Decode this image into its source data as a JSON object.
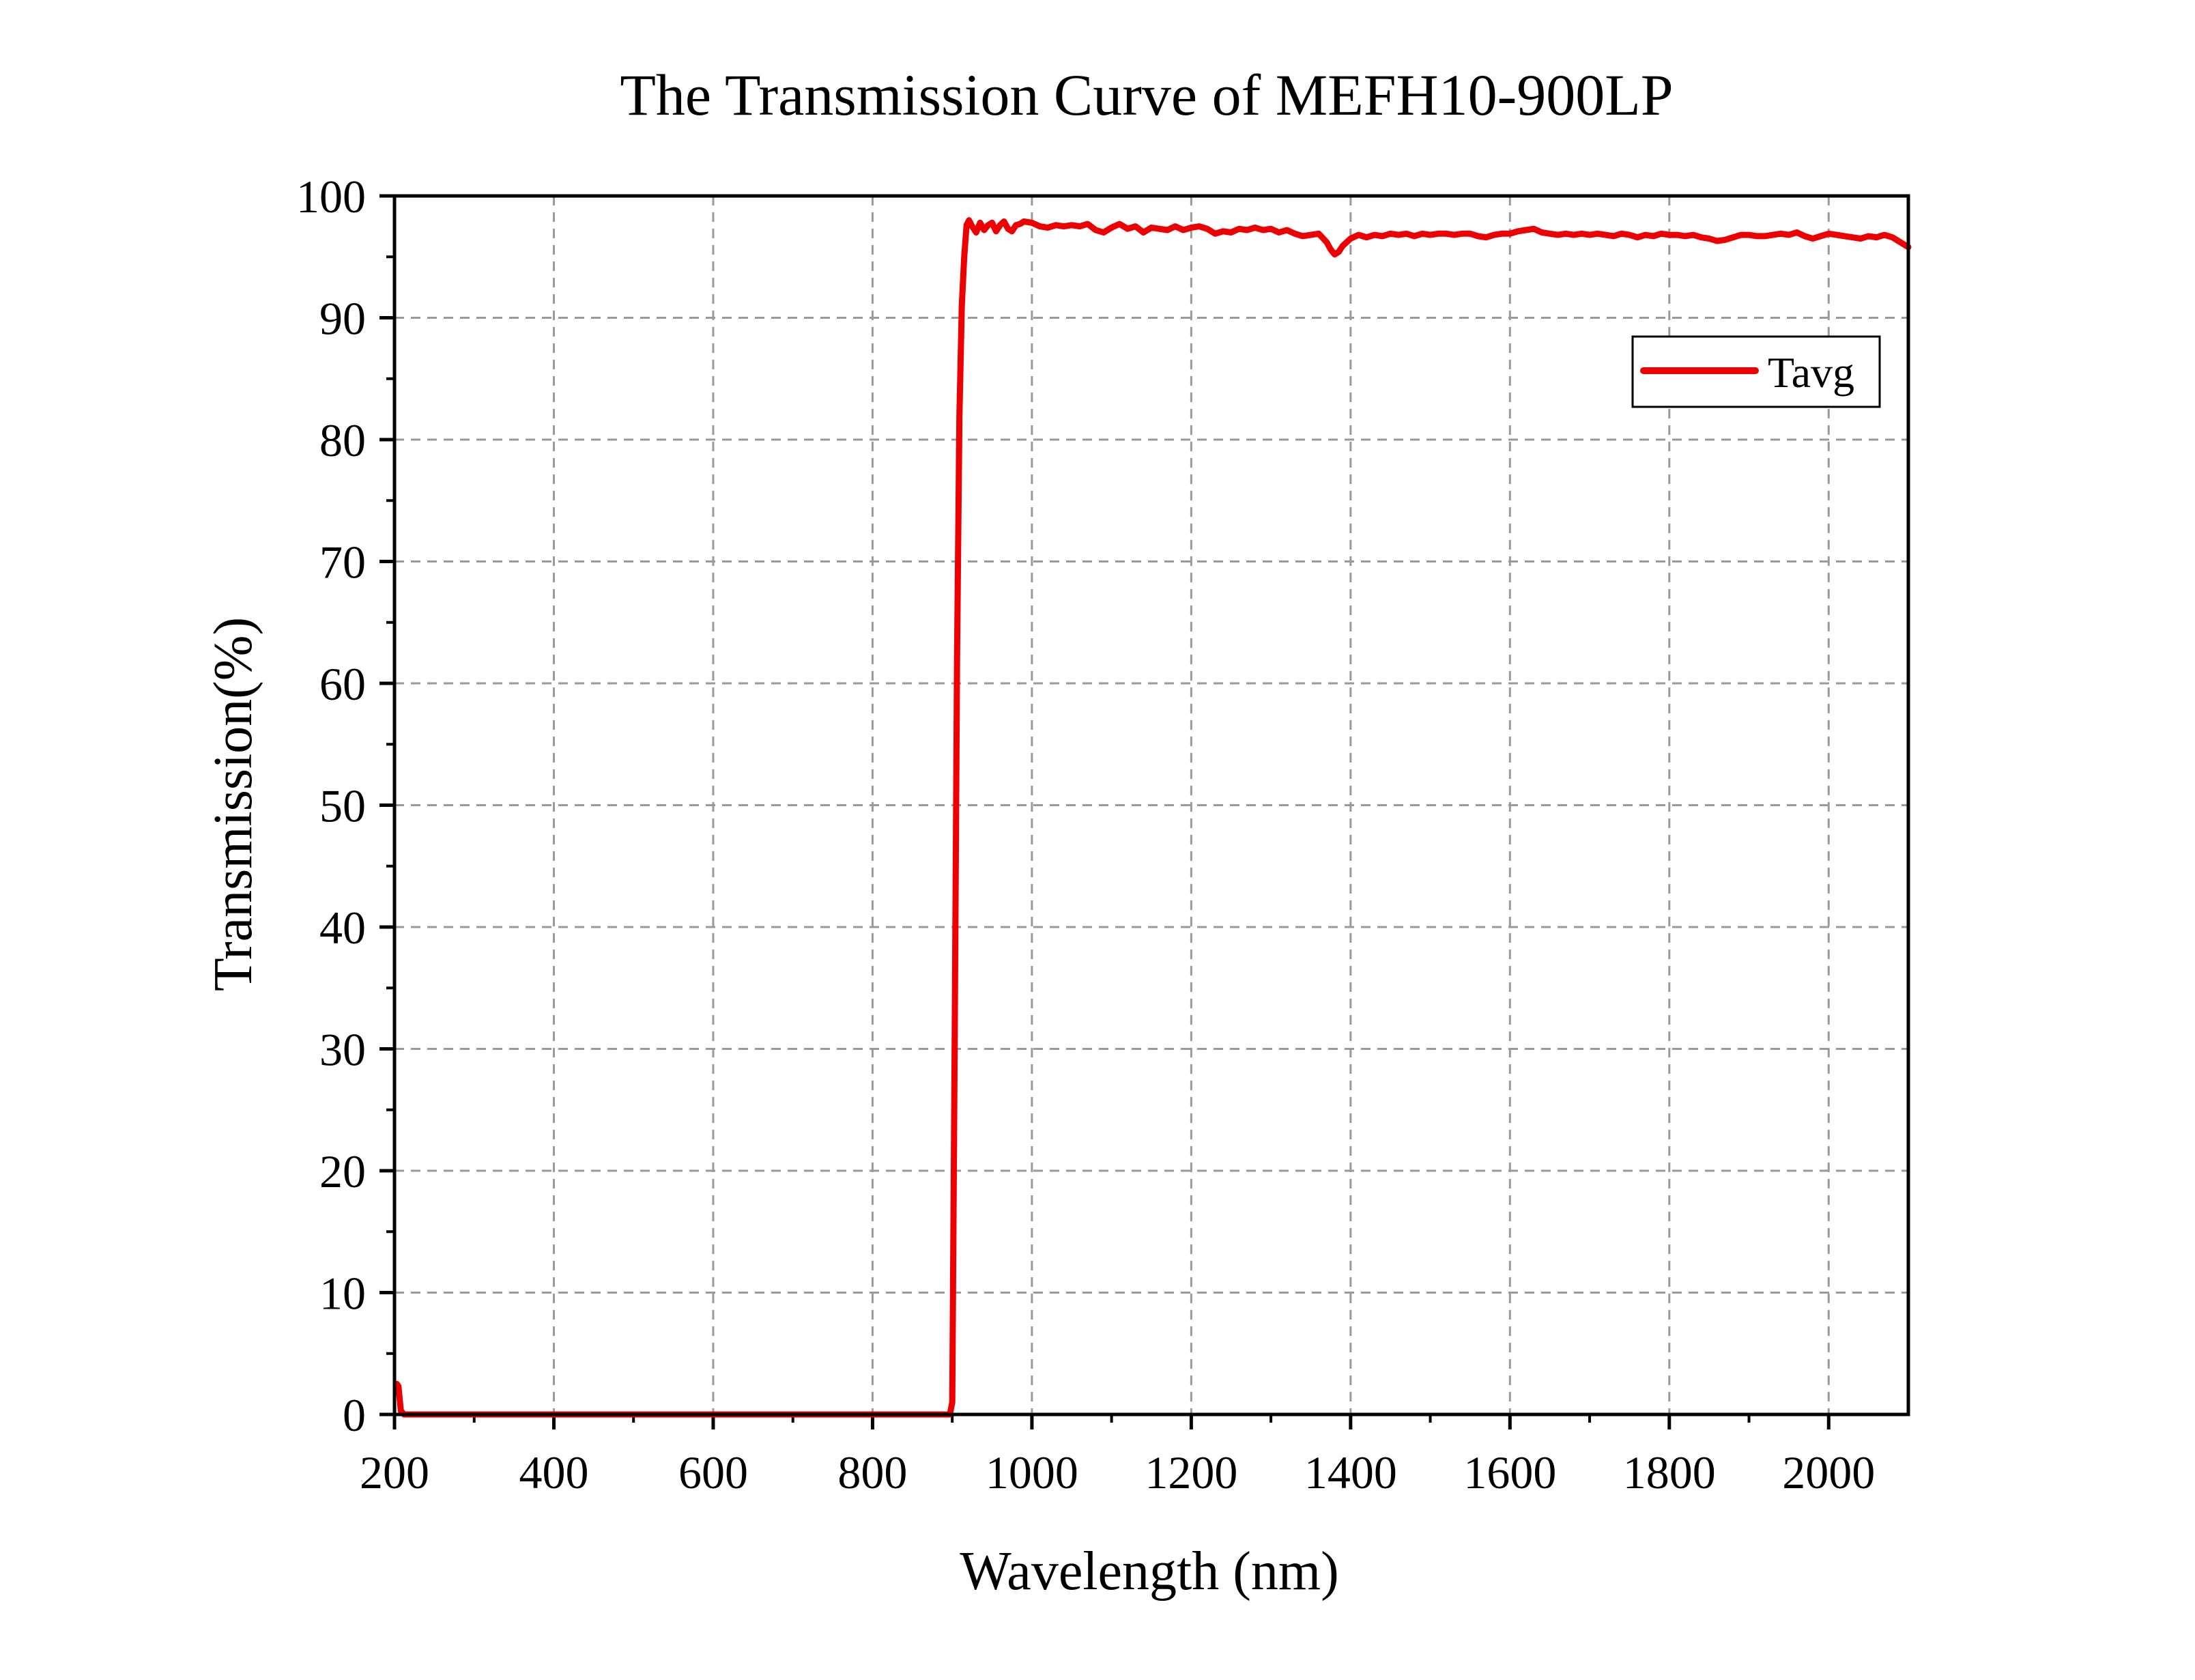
{
  "chart_data": {
    "type": "line",
    "title": "The Transmission Curve of MEFH10-900LP",
    "xlabel": "Wavelength (nm)",
    "ylabel": "Transmission(%)",
    "xlim": [
      200,
      2100
    ],
    "ylim": [
      0,
      100
    ],
    "xticks": [
      200,
      400,
      600,
      800,
      1000,
      1200,
      1400,
      1600,
      1800,
      2000
    ],
    "xtick_labels": [
      "200",
      "400",
      "600",
      "800",
      "1000",
      "1200",
      "1400",
      "1600",
      "1800",
      "2000"
    ],
    "yticks": [
      0,
      10,
      20,
      30,
      40,
      50,
      60,
      70,
      80,
      90,
      100
    ],
    "ytick_labels": [
      "0",
      "10",
      "20",
      "30",
      "40",
      "50",
      "60",
      "70",
      "80",
      "90",
      "100"
    ],
    "grid": true,
    "legend_position": "top-right",
    "series": [
      {
        "name": "Tavg",
        "color": "#ee0000",
        "points": [
          [
            203,
            2.5
          ],
          [
            205,
            2.3
          ],
          [
            208,
            0.3
          ],
          [
            212,
            0
          ],
          [
            300,
            0
          ],
          [
            500,
            0
          ],
          [
            700,
            0
          ],
          [
            850,
            0
          ],
          [
            897,
            0
          ],
          [
            900,
            1
          ],
          [
            903,
            30
          ],
          [
            906,
            62
          ],
          [
            909,
            82
          ],
          [
            912,
            91
          ],
          [
            915,
            95
          ],
          [
            918,
            97.6
          ],
          [
            921,
            98.0
          ],
          [
            925,
            97.5
          ],
          [
            930,
            97.0
          ],
          [
            935,
            97.8
          ],
          [
            940,
            97.2
          ],
          [
            945,
            97.6
          ],
          [
            950,
            97.8
          ],
          [
            955,
            97.1
          ],
          [
            960,
            97.6
          ],
          [
            965,
            97.9
          ],
          [
            970,
            97.3
          ],
          [
            975,
            97.1
          ],
          [
            980,
            97.6
          ],
          [
            985,
            97.7
          ],
          [
            990,
            97.9
          ],
          [
            1000,
            97.8
          ],
          [
            1010,
            97.5
          ],
          [
            1020,
            97.4
          ],
          [
            1030,
            97.6
          ],
          [
            1040,
            97.5
          ],
          [
            1050,
            97.6
          ],
          [
            1060,
            97.5
          ],
          [
            1070,
            97.7
          ],
          [
            1080,
            97.2
          ],
          [
            1090,
            97.0
          ],
          [
            1100,
            97.4
          ],
          [
            1110,
            97.7
          ],
          [
            1120,
            97.3
          ],
          [
            1130,
            97.5
          ],
          [
            1140,
            97.0
          ],
          [
            1150,
            97.4
          ],
          [
            1160,
            97.3
          ],
          [
            1170,
            97.2
          ],
          [
            1180,
            97.5
          ],
          [
            1190,
            97.2
          ],
          [
            1200,
            97.4
          ],
          [
            1210,
            97.5
          ],
          [
            1220,
            97.3
          ],
          [
            1230,
            96.9
          ],
          [
            1240,
            97.1
          ],
          [
            1250,
            97.0
          ],
          [
            1260,
            97.3
          ],
          [
            1270,
            97.2
          ],
          [
            1280,
            97.4
          ],
          [
            1290,
            97.2
          ],
          [
            1300,
            97.3
          ],
          [
            1310,
            97.0
          ],
          [
            1320,
            97.2
          ],
          [
            1330,
            96.9
          ],
          [
            1340,
            96.7
          ],
          [
            1350,
            96.8
          ],
          [
            1360,
            96.9
          ],
          [
            1370,
            96.2
          ],
          [
            1375,
            95.6
          ],
          [
            1380,
            95.2
          ],
          [
            1385,
            95.4
          ],
          [
            1390,
            95.9
          ],
          [
            1400,
            96.5
          ],
          [
            1410,
            96.8
          ],
          [
            1420,
            96.6
          ],
          [
            1430,
            96.8
          ],
          [
            1440,
            96.7
          ],
          [
            1450,
            96.9
          ],
          [
            1460,
            96.8
          ],
          [
            1470,
            96.9
          ],
          [
            1480,
            96.7
          ],
          [
            1490,
            96.9
          ],
          [
            1500,
            96.8
          ],
          [
            1510,
            96.9
          ],
          [
            1520,
            96.9
          ],
          [
            1530,
            96.8
          ],
          [
            1540,
            96.9
          ],
          [
            1550,
            96.9
          ],
          [
            1560,
            96.7
          ],
          [
            1570,
            96.6
          ],
          [
            1580,
            96.8
          ],
          [
            1590,
            96.9
          ],
          [
            1600,
            96.9
          ],
          [
            1610,
            97.1
          ],
          [
            1620,
            97.2
          ],
          [
            1630,
            97.3
          ],
          [
            1640,
            97.0
          ],
          [
            1650,
            96.9
          ],
          [
            1660,
            96.8
          ],
          [
            1670,
            96.9
          ],
          [
            1680,
            96.8
          ],
          [
            1690,
            96.9
          ],
          [
            1700,
            96.8
          ],
          [
            1710,
            96.9
          ],
          [
            1720,
            96.8
          ],
          [
            1730,
            96.7
          ],
          [
            1740,
            96.9
          ],
          [
            1750,
            96.8
          ],
          [
            1760,
            96.6
          ],
          [
            1770,
            96.8
          ],
          [
            1780,
            96.7
          ],
          [
            1790,
            96.9
          ],
          [
            1800,
            96.8
          ],
          [
            1810,
            96.8
          ],
          [
            1820,
            96.7
          ],
          [
            1830,
            96.8
          ],
          [
            1840,
            96.6
          ],
          [
            1850,
            96.5
          ],
          [
            1860,
            96.3
          ],
          [
            1870,
            96.4
          ],
          [
            1880,
            96.6
          ],
          [
            1890,
            96.8
          ],
          [
            1900,
            96.8
          ],
          [
            1910,
            96.7
          ],
          [
            1920,
            96.7
          ],
          [
            1930,
            96.8
          ],
          [
            1940,
            96.9
          ],
          [
            1950,
            96.8
          ],
          [
            1960,
            97.0
          ],
          [
            1970,
            96.7
          ],
          [
            1980,
            96.5
          ],
          [
            1990,
            96.7
          ],
          [
            2000,
            96.9
          ],
          [
            2010,
            96.8
          ],
          [
            2020,
            96.7
          ],
          [
            2030,
            96.6
          ],
          [
            2040,
            96.5
          ],
          [
            2050,
            96.7
          ],
          [
            2060,
            96.6
          ],
          [
            2070,
            96.8
          ],
          [
            2080,
            96.6
          ],
          [
            2090,
            96.2
          ],
          [
            2100,
            95.8
          ]
        ]
      }
    ]
  }
}
